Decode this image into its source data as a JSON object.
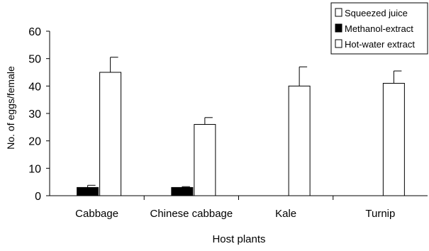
{
  "chart_data": {
    "type": "bar",
    "categories": [
      "Cabbage",
      "Chinese cabbage",
      "Kale",
      "Turnip"
    ],
    "series": [
      {
        "name": "Squeezed juice",
        "values": [
          null,
          null,
          null,
          null
        ],
        "errors": [
          null,
          null,
          null,
          null
        ],
        "fill": "#ffffff"
      },
      {
        "name": "Methanol-extract",
        "values": [
          3,
          3,
          null,
          null
        ],
        "errors": [
          0.8,
          0.3,
          null,
          null
        ],
        "fill": "#000000"
      },
      {
        "name": "Hot-water extract",
        "values": [
          45,
          26,
          40,
          41
        ],
        "errors": [
          5.5,
          2.5,
          7,
          4.5
        ],
        "fill": "#ffffff"
      }
    ],
    "xlabel": "Host plants",
    "ylabel": "No. of eggs/female",
    "ylim": [
      0,
      60
    ],
    "yticks": [
      0,
      10,
      20,
      30,
      40,
      50,
      60
    ],
    "grid": false,
    "legend_position": "top-right"
  }
}
